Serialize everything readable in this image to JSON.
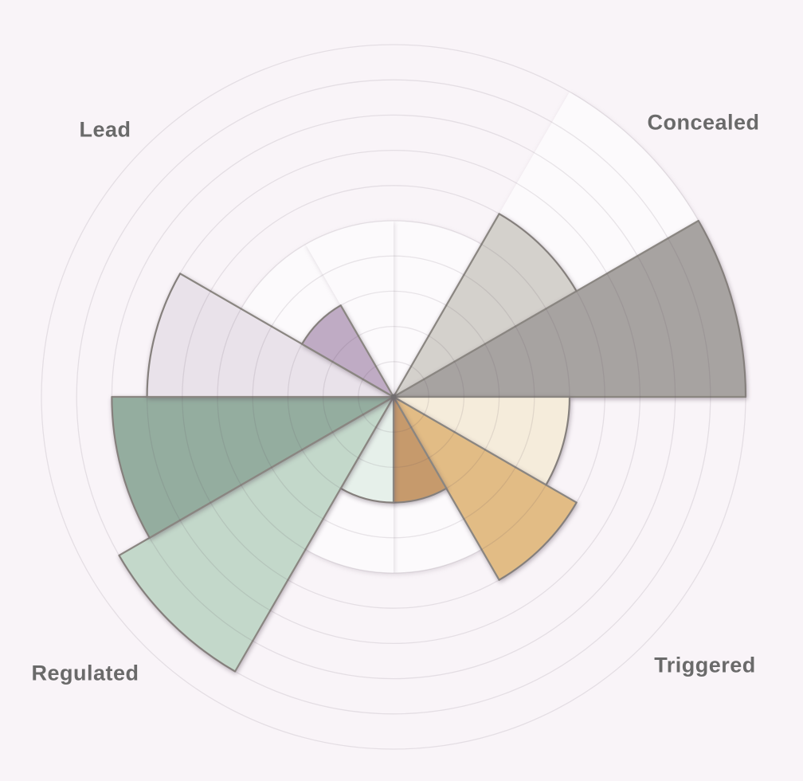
{
  "chart_data": {
    "type": "rose",
    "subtype": "polar-sector-chart",
    "title": "",
    "direction_labels": [
      {
        "label": "Concealed",
        "angle_deg": 45
      },
      {
        "label": "Triggered",
        "angle_deg": 135
      },
      {
        "label": "Regulated",
        "angle_deg": 225
      },
      {
        "label": "Lead",
        "angle_deg": 315
      }
    ],
    "radial_axis": {
      "rings": 10,
      "ring_step": 1,
      "max": 10,
      "tick_labels_visible": false,
      "grid": "on"
    },
    "sectors": [
      {
        "group": "Concealed",
        "start_deg": 0,
        "end_deg": 30,
        "value": 5,
        "fill": "#fcfafc",
        "outline": "none",
        "white_underlay_value": 0
      },
      {
        "group": "Concealed",
        "start_deg": 30,
        "end_deg": 60,
        "value": 6,
        "fill": "#d4d1cc",
        "outline": "gray",
        "white_underlay_value": 10
      },
      {
        "group": "Concealed",
        "start_deg": 60,
        "end_deg": 90,
        "value": 10,
        "fill": "#a7a3a1",
        "outline": "gray",
        "white_underlay_value": 0
      },
      {
        "group": "Triggered",
        "start_deg": 90,
        "end_deg": 120,
        "value": 5,
        "fill": "#f5ecdb",
        "outline": "gray",
        "white_underlay_value": 0
      },
      {
        "group": "Triggered",
        "start_deg": 120,
        "end_deg": 150,
        "value": 6,
        "fill": "#e2bc85",
        "outline": "gray",
        "white_underlay_value": 0
      },
      {
        "group": "Triggered",
        "start_deg": 150,
        "end_deg": 180,
        "value": 3,
        "fill": "#c69a6c",
        "outline": "gray",
        "white_underlay_value": 5
      },
      {
        "group": "Regulated",
        "start_deg": 180,
        "end_deg": 210,
        "value": 3,
        "fill": "#e6f0ea",
        "outline": "gray",
        "white_underlay_value": 5
      },
      {
        "group": "Regulated",
        "start_deg": 210,
        "end_deg": 240,
        "value": 9,
        "fill": "#c3d8ca",
        "outline": "gray",
        "white_underlay_value": 0
      },
      {
        "group": "Regulated",
        "start_deg": 240,
        "end_deg": 270,
        "value": 8,
        "fill": "#94ad9f",
        "outline": "gray",
        "white_underlay_value": 0
      },
      {
        "group": "Lead",
        "start_deg": 270,
        "end_deg": 300,
        "value": 7,
        "fill": "#e9e2ea",
        "outline": "gray",
        "white_underlay_value": 0
      },
      {
        "group": "Lead",
        "start_deg": 300,
        "end_deg": 330,
        "value": 3,
        "fill": "#bfabc4",
        "outline": "gray",
        "white_underlay_value": 5
      },
      {
        "group": "Lead",
        "start_deg": 330,
        "end_deg": 360,
        "value": 5,
        "fill": "#fcfafc",
        "outline": "none",
        "white_underlay_value": 0
      }
    ],
    "colors": {
      "background": "#f9f4f8",
      "gridline": "#e5dfe4",
      "sector_stroke": "#8a8681",
      "white_fill": "#fcfafc",
      "label_color": "#6a6a6a"
    },
    "legend_visible": false
  }
}
